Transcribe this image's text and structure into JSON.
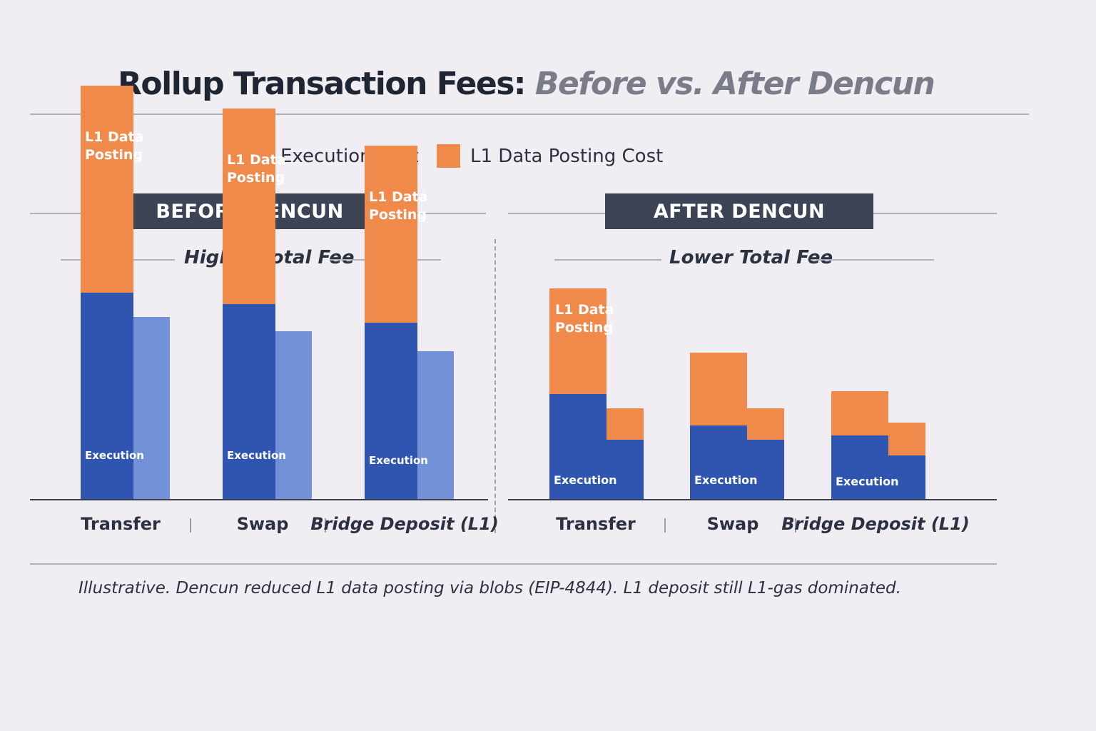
{
  "title": {
    "main": "Rollup Transaction Fees:",
    "sub": "Before vs. After Dencun"
  },
  "legend": [
    {
      "label": "Execution Cost",
      "color": "#2f55b0"
    },
    {
      "label": "L1 Data Posting Cost",
      "color": "#f08a4b"
    }
  ],
  "panels": {
    "before": {
      "label": "BEFORE DENCUN",
      "subtitle": "Higher Total Fee"
    },
    "after": {
      "label": "AFTER DENCUN",
      "subtitle": "Lower Total Fee"
    }
  },
  "note": "Illustrative. Dencun reduced L1 data posting via blobs (EIP-4844). L1 deposit still L1-gas dominated.",
  "chart_data": [
    {
      "type": "bar",
      "stacked": true,
      "categories": [
        "Transfer",
        "Swap",
        "Bridge Deposit (L1)"
      ],
      "series": [
        {
          "name": "Execution Cost",
          "values": [
            14.5,
            13.7,
            12.4
          ]
        },
        {
          "name": "L1 Data Posting Cost",
          "values": [
            14.5,
            13.7,
            12.4
          ]
        }
      ],
      "secondary_bar_values": [
        12.8,
        11.8,
        10.4
      ],
      "segment_labels": {
        "execution": "Execution",
        "posting_line1": "L1 Data",
        "posting_line2": "Posting"
      },
      "ylim": [
        0,
        30
      ],
      "colors": {
        "execution": "#2f55b0",
        "posting": "#f08a4b",
        "secondary": "#7291d6"
      }
    },
    {
      "type": "bar",
      "stacked": true,
      "categories": [
        "Transfer",
        "Swap",
        "Bridge Deposit (L1)"
      ],
      "series": [
        {
          "name": "Execution Cost",
          "values": [
            7.4,
            5.2,
            4.5
          ]
        },
        {
          "name": "L1 Data Posting Cost",
          "values": [
            7.4,
            5.1,
            3.1
          ]
        }
      ],
      "secondary_series": [
        {
          "name": "Execution Cost",
          "values": [
            4.2,
            4.2,
            3.1
          ]
        },
        {
          "name": "L1 Data Posting Cost",
          "values": [
            2.2,
            2.2,
            2.3
          ]
        }
      ],
      "segment_labels": {
        "execution": "Execution",
        "posting_line1": "L1 Data",
        "posting_line2": "Posting"
      },
      "ylim": [
        0,
        30
      ],
      "colors": {
        "execution": "#2f55b0",
        "posting": "#f08a4b"
      }
    }
  ]
}
